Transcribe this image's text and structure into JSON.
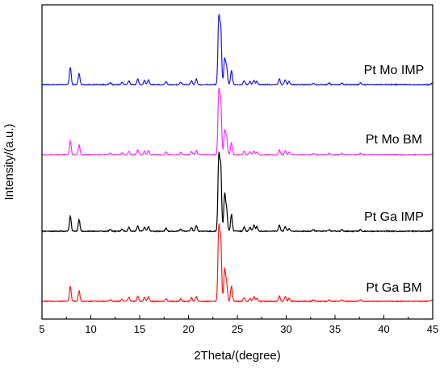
{
  "chart_data": {
    "type": "line",
    "title": "",
    "xlabel": "2Theta/(degree)",
    "ylabel": "Intensity/(a.u.)",
    "xlim": [
      5,
      45
    ],
    "xticks": [
      5,
      10,
      15,
      20,
      25,
      30,
      35,
      40,
      45
    ],
    "y_ticks_shown": false,
    "grid": false,
    "legend": "labels placed beside each trace (right side)",
    "colors": {
      "Pt Mo IMP": "#1a1aff",
      "Pt Mo BM": "#ff2bff",
      "Pt Ga IMP": "#000000",
      "Pt Ga BM": "#ff1a1a"
    },
    "peaks_2theta": [
      7.9,
      8.8,
      12.0,
      13.2,
      13.9,
      14.8,
      15.5,
      15.9,
      17.7,
      19.2,
      20.3,
      20.8,
      23.1,
      23.3,
      23.7,
      23.9,
      24.4,
      25.7,
      26.3,
      26.7,
      27.0,
      29.3,
      29.9,
      30.3,
      32.8,
      34.4,
      35.7,
      37.6
    ],
    "series": [
      {
        "name": "Pt Mo IMP",
        "relative_intensity": [
          0.22,
          0.14,
          0.02,
          0.03,
          0.05,
          0.07,
          0.05,
          0.06,
          0.04,
          0.03,
          0.05,
          0.07,
          0.82,
          0.7,
          0.32,
          0.22,
          0.18,
          0.05,
          0.04,
          0.05,
          0.04,
          0.07,
          0.06,
          0.04,
          0.02,
          0.02,
          0.02,
          0.02
        ]
      },
      {
        "name": "Pt Mo BM",
        "relative_intensity": [
          0.2,
          0.14,
          0.02,
          0.03,
          0.05,
          0.07,
          0.05,
          0.06,
          0.04,
          0.03,
          0.05,
          0.06,
          0.9,
          0.78,
          0.34,
          0.26,
          0.18,
          0.05,
          0.04,
          0.05,
          0.04,
          0.07,
          0.06,
          0.04,
          0.02,
          0.02,
          0.02,
          0.02
        ]
      },
      {
        "name": "Pt Ga IMP",
        "relative_intensity": [
          0.2,
          0.15,
          0.02,
          0.03,
          0.05,
          0.07,
          0.05,
          0.06,
          0.04,
          0.03,
          0.05,
          0.07,
          0.95,
          0.82,
          0.48,
          0.28,
          0.22,
          0.06,
          0.05,
          0.08,
          0.06,
          0.08,
          0.06,
          0.04,
          0.02,
          0.02,
          0.02,
          0.02
        ]
      },
      {
        "name": "Pt Ga BM",
        "relative_intensity": [
          0.2,
          0.14,
          0.02,
          0.03,
          0.05,
          0.07,
          0.05,
          0.06,
          0.04,
          0.03,
          0.05,
          0.06,
          0.95,
          0.8,
          0.42,
          0.24,
          0.2,
          0.05,
          0.04,
          0.06,
          0.04,
          0.07,
          0.06,
          0.04,
          0.02,
          0.02,
          0.02,
          0.02
        ]
      }
    ]
  }
}
